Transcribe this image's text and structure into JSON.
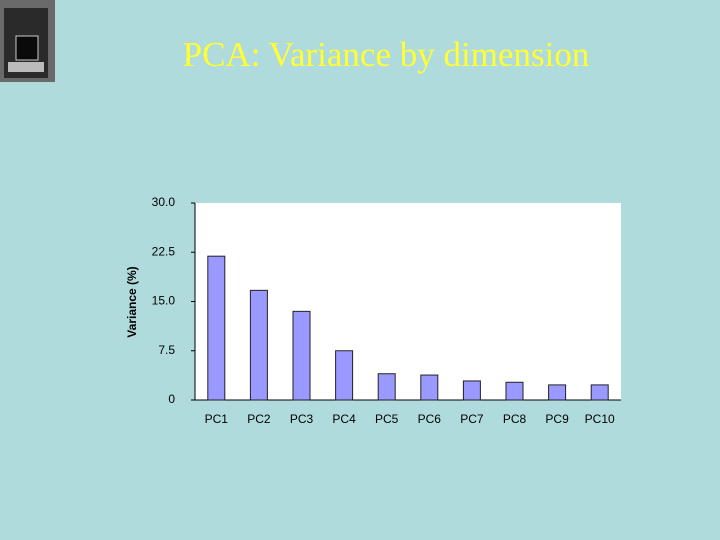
{
  "chart_data": {
    "type": "bar",
    "title": "PCA: Variance by dimension",
    "y_label": "Variance (%)",
    "categories": [
      "PC1",
      "PC2",
      "PC3",
      "PC4",
      "PC5",
      "PC6",
      "PC7",
      "PC8",
      "PC9",
      "PC10"
    ],
    "values": [
      21.9,
      16.7,
      13.5,
      7.5,
      4.0,
      3.8,
      2.9,
      2.7,
      2.3,
      2.3
    ],
    "color": "#9999ff",
    "ylim": [
      0,
      30
    ],
    "yticks": [
      0,
      7.5,
      {
        "value": 15,
        "label": "15.0"
      },
      22.5,
      {
        "value": 30,
        "label": "30.0"
      }
    ],
    "grid": false
  }
}
